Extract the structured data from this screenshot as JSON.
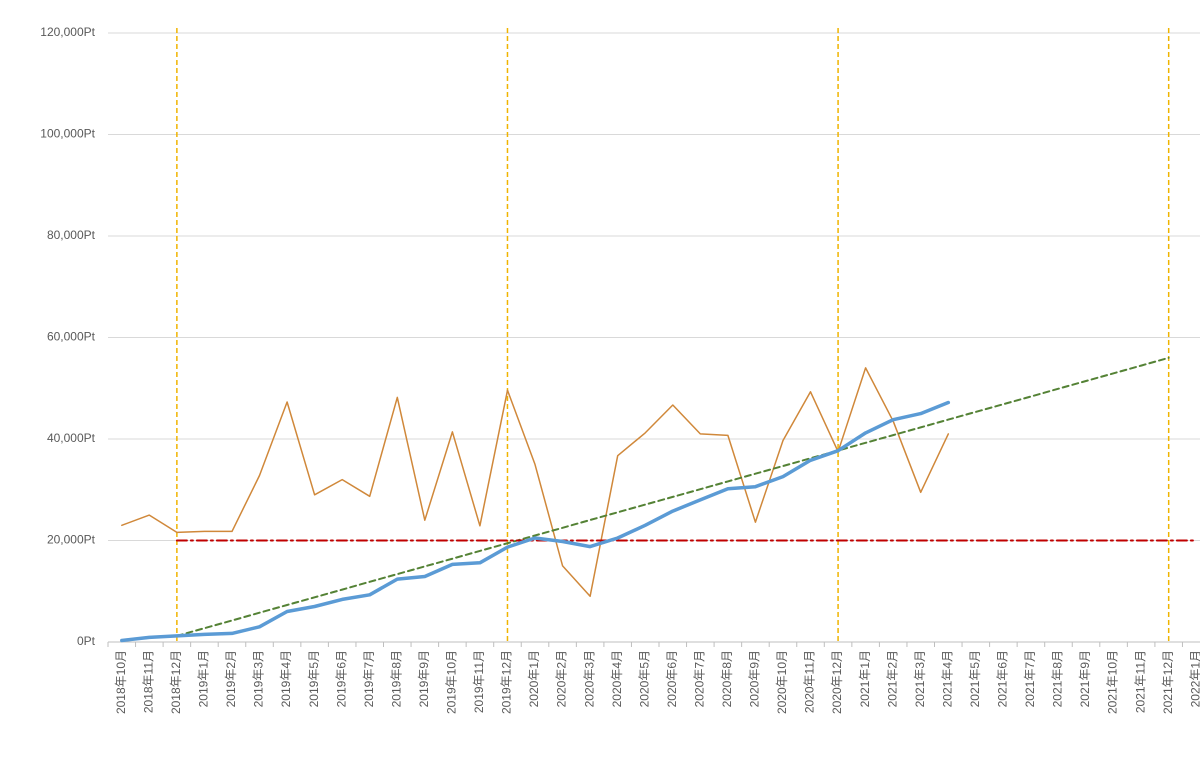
{
  "chart_data": {
    "type": "line",
    "categories": [
      "2018年10月",
      "2018年11月",
      "2018年12月",
      "2019年1月",
      "2019年2月",
      "2019年3月",
      "2019年4月",
      "2019年5月",
      "2019年6月",
      "2019年7月",
      "2019年8月",
      "2019年9月",
      "2019年10月",
      "2019年11月",
      "2019年12月",
      "2020年1月",
      "2020年2月",
      "2020年3月",
      "2020年4月",
      "2020年5月",
      "2020年6月",
      "2020年7月",
      "2020年8月",
      "2020年9月",
      "2020年10月",
      "2020年11月",
      "2020年12月",
      "2021年1月",
      "2021年2月",
      "2021年3月",
      "2021年4月",
      "2021年5月",
      "2021年6月",
      "2021年7月",
      "2021年8月",
      "2021年9月",
      "2021年10月",
      "2021年11月",
      "2021年12月",
      "2022年1月"
    ],
    "series": [
      {
        "color": "#d0883a",
        "width": 1.5,
        "dash": "none",
        "values": [
          23000,
          25000,
          21600,
          21800,
          21800,
          32800,
          47300,
          29000,
          32000,
          28700,
          48200,
          24000,
          41400,
          22900,
          49600,
          35000,
          15000,
          9000,
          36700,
          41200,
          46700,
          41000,
          40700,
          23600,
          39700,
          49300,
          37500,
          54000,
          43500,
          29500,
          41000,
          null,
          null,
          null,
          null,
          null,
          null,
          null,
          null,
          null
        ]
      },
      {
        "color": "#548235",
        "width": 2,
        "dash": "6 4",
        "values": [
          null,
          null,
          1200,
          2722,
          4244,
          5766,
          7288,
          8810,
          10332,
          11854,
          13376,
          14898,
          16420,
          17942,
          19464,
          20986,
          22508,
          24030,
          25552,
          27074,
          28596,
          30118,
          31640,
          33162,
          34684,
          36206,
          37728,
          39250,
          40772,
          42294,
          43816,
          45338,
          46860,
          48382,
          49904,
          51426,
          52948,
          54470,
          55992,
          null
        ]
      },
      {
        "color": "#c00000",
        "width": 2,
        "dash": "10 4 2 4",
        "values": [
          null,
          null,
          20000,
          20000,
          20000,
          20000,
          20000,
          20000,
          20000,
          20000,
          20000,
          20000,
          20000,
          20000,
          20000,
          20000,
          20000,
          20000,
          20000,
          20000,
          20000,
          20000,
          20000,
          20000,
          20000,
          20000,
          20000,
          20000,
          20000,
          20000,
          20000,
          20000,
          20000,
          20000,
          20000,
          20000,
          20000,
          20000,
          20000,
          20000
        ]
      },
      {
        "color": "#5b9bd5",
        "width": 3.5,
        "dash": "none",
        "values": [
          300,
          900,
          1200,
          1500,
          1700,
          3000,
          6000,
          7000,
          8400,
          9300,
          12400,
          12900,
          15300,
          15600,
          18700,
          20500,
          19800,
          18800,
          20500,
          23000,
          25800,
          28000,
          30200,
          30600,
          32600,
          35800,
          37700,
          41200,
          43800,
          45000,
          47200,
          null,
          null,
          null,
          null,
          null,
          null,
          null,
          null,
          null
        ]
      }
    ],
    "vlines": {
      "color": "#f0b400",
      "at": [
        "2018年12月",
        "2019年12月",
        "2020年12月",
        "2021年12月"
      ]
    },
    "ylim": [
      0,
      120000
    ],
    "yticks": [
      {
        "value": 0,
        "label": "0Pt"
      },
      {
        "value": 20000,
        "label": "20,000Pt"
      },
      {
        "value": 40000,
        "label": "40,000Pt"
      },
      {
        "value": 60000,
        "label": "60,000Pt"
      },
      {
        "value": 80000,
        "label": "80,000Pt"
      },
      {
        "value": 100000,
        "label": "100,000Pt"
      },
      {
        "value": 120000,
        "label": "120,000Pt"
      }
    ],
    "grid": true
  }
}
